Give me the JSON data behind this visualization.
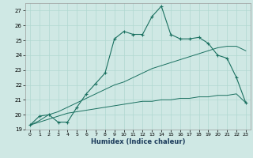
{
  "title": "",
  "xlabel": "Humidex (Indice chaleur)",
  "xlim": [
    -0.5,
    23.5
  ],
  "ylim": [
    19,
    27.5
  ],
  "xticks": [
    0,
    1,
    2,
    3,
    4,
    5,
    6,
    7,
    8,
    9,
    10,
    11,
    12,
    13,
    14,
    15,
    16,
    17,
    18,
    19,
    20,
    21,
    22,
    23
  ],
  "yticks": [
    19,
    20,
    21,
    22,
    23,
    24,
    25,
    26,
    27
  ],
  "bg_color": "#cfe8e4",
  "line_color": "#1a7060",
  "grid_color": "#b0d8d0",
  "line1_x": [
    0,
    1,
    2,
    3,
    4,
    5,
    6,
    7,
    8,
    9,
    10,
    11,
    12,
    13,
    14,
    15,
    16,
    17,
    18,
    19,
    20,
    21,
    22,
    23
  ],
  "line1_y": [
    19.3,
    19.9,
    20.0,
    19.5,
    19.5,
    20.5,
    21.4,
    22.1,
    22.8,
    25.1,
    25.6,
    25.4,
    25.4,
    26.6,
    27.3,
    25.4,
    25.1,
    25.1,
    25.2,
    24.8,
    24.0,
    23.8,
    22.5,
    20.8
  ],
  "line2_x": [
    0,
    1,
    2,
    3,
    4,
    5,
    6,
    7,
    8,
    9,
    10,
    11,
    12,
    13,
    14,
    15,
    16,
    17,
    18,
    19,
    20,
    21,
    22,
    23
  ],
  "line2_y": [
    19.3,
    19.6,
    20.0,
    20.2,
    20.5,
    20.8,
    21.1,
    21.4,
    21.7,
    22.0,
    22.2,
    22.5,
    22.8,
    23.1,
    23.3,
    23.5,
    23.7,
    23.9,
    24.1,
    24.3,
    24.5,
    24.6,
    24.6,
    24.3
  ],
  "line3_x": [
    0,
    1,
    2,
    3,
    4,
    5,
    6,
    7,
    8,
    9,
    10,
    11,
    12,
    13,
    14,
    15,
    16,
    17,
    18,
    19,
    20,
    21,
    22,
    23
  ],
  "line3_y": [
    19.3,
    19.5,
    19.7,
    19.9,
    20.1,
    20.2,
    20.3,
    20.4,
    20.5,
    20.6,
    20.7,
    20.8,
    20.9,
    20.9,
    21.0,
    21.0,
    21.1,
    21.1,
    21.2,
    21.2,
    21.3,
    21.3,
    21.4,
    20.8
  ]
}
